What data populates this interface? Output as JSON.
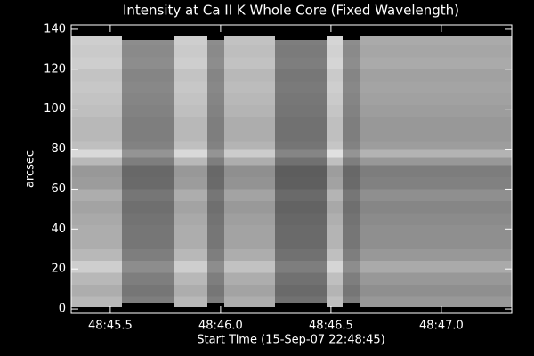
{
  "chart_data": {
    "type": "heatmap",
    "title": "Intensity at Ca II K Whole Core (Fixed Wavelength)",
    "x_label": "Start Time (15-Sep-07 22:48:45)",
    "y_label": "arcsec",
    "xlim": [
      45.323,
      47.319
    ],
    "ylim": [
      -2.2,
      142.2
    ],
    "xticks": [
      {
        "value": 45.5,
        "label": "48:45.5"
      },
      {
        "value": 46.0,
        "label": "48:46.0"
      },
      {
        "value": 46.5,
        "label": "48:46.5"
      },
      {
        "value": 47.0,
        "label": "48:47.0"
      }
    ],
    "yticks": [
      0,
      20,
      40,
      60,
      80,
      100,
      120,
      140
    ],
    "columns": [
      {
        "x0": 45.323,
        "x1": 45.553,
        "y0": 0.9,
        "y1": 136.9,
        "level": 0.85
      },
      {
        "x0": 45.553,
        "x1": 45.787,
        "y0": 3.1,
        "y1": 134.6,
        "level": 0.58
      },
      {
        "x0": 45.787,
        "x1": 45.94,
        "y0": 0.9,
        "y1": 136.9,
        "level": 0.85
      },
      {
        "x0": 45.94,
        "x1": 46.017,
        "y0": 3.1,
        "y1": 134.6,
        "level": 0.58
      },
      {
        "x0": 46.017,
        "x1": 46.246,
        "y0": 0.9,
        "y1": 136.9,
        "level": 0.8
      },
      {
        "x0": 46.246,
        "x1": 46.48,
        "y0": 3.1,
        "y1": 134.6,
        "level": 0.52
      },
      {
        "x0": 46.48,
        "x1": 46.553,
        "y0": 0.9,
        "y1": 136.9,
        "level": 0.88
      },
      {
        "x0": 46.553,
        "x1": 46.63,
        "y0": 3.1,
        "y1": 134.6,
        "level": 0.58
      },
      {
        "x0": 46.63,
        "x1": 47.319,
        "y0": 0.9,
        "y1": 136.9,
        "level": 0.7
      }
    ],
    "rows": [
      {
        "y0": 0,
        "y1": 6,
        "level": 0.85
      },
      {
        "y0": 6,
        "y1": 12,
        "level": 0.8
      },
      {
        "y0": 12,
        "y1": 18,
        "level": 0.85
      },
      {
        "y0": 18,
        "y1": 24,
        "level": 0.95
      },
      {
        "y0": 24,
        "y1": 30,
        "level": 0.85
      },
      {
        "y0": 30,
        "y1": 36,
        "level": 0.8
      },
      {
        "y0": 36,
        "y1": 42,
        "level": 0.8
      },
      {
        "y0": 42,
        "y1": 48,
        "level": 0.78
      },
      {
        "y0": 48,
        "y1": 54,
        "level": 0.75
      },
      {
        "y0": 54,
        "y1": 60,
        "level": 0.8
      },
      {
        "y0": 60,
        "y1": 66,
        "level": 0.72
      },
      {
        "y0": 66,
        "y1": 72,
        "level": 0.7
      },
      {
        "y0": 72,
        "y1": 76,
        "level": 0.85
      },
      {
        "y0": 76,
        "y1": 80,
        "level": 1.0
      },
      {
        "y0": 80,
        "y1": 84,
        "level": 0.88
      },
      {
        "y0": 84,
        "y1": 90,
        "level": 0.85
      },
      {
        "y0": 90,
        "y1": 96,
        "level": 0.85
      },
      {
        "y0": 96,
        "y1": 102,
        "level": 0.88
      },
      {
        "y0": 102,
        "y1": 108,
        "level": 0.9
      },
      {
        "y0": 108,
        "y1": 114,
        "level": 0.92
      },
      {
        "y0": 114,
        "y1": 120,
        "level": 0.9
      },
      {
        "y0": 120,
        "y1": 126,
        "level": 0.95
      },
      {
        "y0": 126,
        "y1": 132,
        "level": 0.93
      },
      {
        "y0": 132,
        "y1": 138,
        "level": 0.95
      }
    ]
  }
}
